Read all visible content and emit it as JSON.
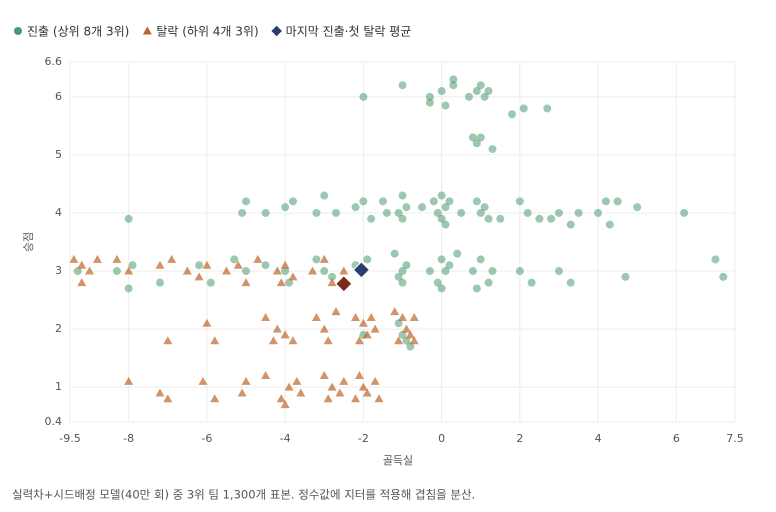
{
  "chart_data": {
    "type": "scatter",
    "xlabel": "골득실",
    "ylabel": "승점",
    "footnote": "실력차+시드배정 모델(40만 회) 중 3위 팀 1,300개 표본. 정수값에 지터를 적용해 겹침을 분산.",
    "xlim": [
      -9.5,
      7.5
    ],
    "xticks": [
      -9.5,
      -8,
      -6,
      -4,
      -2,
      0,
      2,
      4,
      6,
      7.5
    ],
    "ylim": [
      0.4,
      6.6
    ],
    "yticks": [
      0.4,
      1,
      2,
      3,
      4,
      5,
      6,
      6.6
    ],
    "grid": true,
    "series": [
      {
        "name": "진출 (상위 8개 3위)",
        "color": "#4a9a6e",
        "marker": "circle",
        "x": [
          -2,
          -1,
          -0.3,
          -0.3,
          0,
          0.1,
          0.3,
          0.3,
          0.7,
          0.9,
          1,
          1.1,
          1.2,
          1.8,
          2.1,
          2.7,
          0.8,
          1,
          0.9,
          1.3,
          -8,
          -5,
          -5.1,
          -4.5,
          -4,
          -3.8,
          -3.2,
          -3,
          -2.7,
          -2.2,
          -2,
          -1.8,
          -1,
          -1.1,
          -0.9,
          -1,
          0,
          0.1,
          -0.1,
          0,
          0.2,
          -0.2,
          0.1,
          0.9,
          1,
          1.1,
          1.2,
          2,
          2.2,
          2.5,
          3,
          3.5,
          4,
          4.2,
          4.5,
          5,
          6.2,
          -1.4,
          -1.5,
          -0.5,
          0.5,
          1.5,
          2.8,
          3.3,
          4.3,
          -9.3,
          -8.3,
          -7.9,
          -8,
          -7.2,
          -6.2,
          -5.9,
          -5,
          -5.3,
          -4.5,
          -4,
          -3.9,
          -3.2,
          -3,
          -2.8,
          -2.2,
          -2,
          -1.9,
          -1.2,
          -1,
          -1.1,
          -0.9,
          -1,
          -0.3,
          0,
          0.1,
          -0.1,
          0.2,
          0.4,
          0,
          0.8,
          1,
          1.2,
          1.3,
          0.9,
          2,
          2.3,
          3,
          3.3,
          4.7,
          7,
          7.2,
          -1,
          -1.1,
          -0.9,
          -2,
          -0.8
        ],
        "values": [
          6,
          6.2,
          5.9,
          6,
          6.1,
          5.85,
          6.3,
          6.2,
          6,
          6.1,
          6.2,
          6,
          6.1,
          5.7,
          5.8,
          5.8,
          5.3,
          5.3,
          5.2,
          5.1,
          3.9,
          4.2,
          4,
          4,
          4.1,
          4.2,
          4,
          4.3,
          4,
          4.1,
          4.2,
          3.9,
          4.3,
          4,
          4.1,
          3.9,
          4.3,
          4.1,
          4,
          3.9,
          4.2,
          4.2,
          3.8,
          4.2,
          4,
          4.1,
          3.9,
          4.2,
          4,
          3.9,
          4,
          4,
          4,
          4.2,
          4.2,
          4.1,
          4,
          4,
          4.2,
          4.1,
          4,
          3.9,
          3.9,
          3.8,
          3.8,
          3,
          3,
          3.1,
          2.7,
          2.8,
          3.1,
          2.8,
          3,
          3.2,
          3.1,
          3,
          2.8,
          3.2,
          3,
          2.9,
          3.1,
          3,
          3.2,
          3.3,
          3,
          2.9,
          3.1,
          2.8,
          3,
          3.2,
          3,
          2.8,
          3.1,
          3.3,
          2.7,
          3,
          3.2,
          2.8,
          3,
          2.7,
          3,
          2.8,
          3,
          2.8,
          2.9,
          3.2,
          2.9,
          1.9,
          2.1,
          1.8,
          1.9,
          1.7
        ]
      },
      {
        "name": "탈락 (하위 4개 3위)",
        "color": "#c0652a",
        "marker": "triangle",
        "x": [
          -9.4,
          -9.2,
          -9,
          -8.8,
          -9.2,
          -8.3,
          -8,
          -7.2,
          -6.9,
          -6.5,
          -6,
          -6.2,
          -5.5,
          -5.2,
          -5,
          -4.7,
          -4.2,
          -4,
          -3.8,
          -4.1,
          -3.3,
          -3,
          -2.8,
          -2.5,
          -7,
          -6,
          -5.8,
          -4.5,
          -4.2,
          -4,
          -3.8,
          -4.3,
          -3.2,
          -3,
          -2.9,
          -2.7,
          -2.2,
          -2,
          -1.9,
          -2.1,
          -1.8,
          -1.7,
          -1.2,
          -1,
          -0.9,
          -1.1,
          -0.8,
          -0.7,
          -0.7,
          -8,
          -7.2,
          -7,
          -6.1,
          -5.8,
          -5,
          -5.1,
          -4.5,
          -4.1,
          -3.9,
          -3.7,
          -3.6,
          -4,
          -3,
          -2.8,
          -2.6,
          -2.5,
          -2.9,
          -2.1,
          -2,
          -1.9,
          -1.7,
          -1.6,
          -2.2
        ],
        "values": [
          3.2,
          3.1,
          3,
          3.2,
          2.8,
          3.2,
          3,
          3.1,
          3.2,
          3,
          3.1,
          2.9,
          3,
          3.1,
          2.8,
          3.2,
          3,
          3.1,
          2.9,
          2.8,
          3,
          3.2,
          2.8,
          3,
          1.8,
          2.1,
          1.8,
          2.2,
          2,
          1.9,
          1.8,
          1.8,
          2.2,
          2,
          1.8,
          2.3,
          2.2,
          2.1,
          1.9,
          1.8,
          2.2,
          2,
          2.3,
          2.2,
          2,
          1.8,
          1.9,
          2.2,
          1.8,
          1.1,
          0.9,
          0.8,
          1.1,
          0.8,
          1.1,
          0.9,
          1.2,
          0.8,
          1,
          1.1,
          0.9,
          0.7,
          1.2,
          1,
          0.9,
          1.1,
          0.8,
          1.2,
          1,
          0.9,
          1.1,
          0.8,
          0.8
        ]
      },
      {
        "name": "마지막 진출·첫 탈락 평균",
        "color": "#2c3e70",
        "marker": "diamond",
        "x": [
          -2.05,
          -2.5
        ],
        "values": [
          3.02,
          2.78
        ],
        "colors": [
          "#2c3e70",
          "#7a2a1a"
        ]
      }
    ]
  }
}
